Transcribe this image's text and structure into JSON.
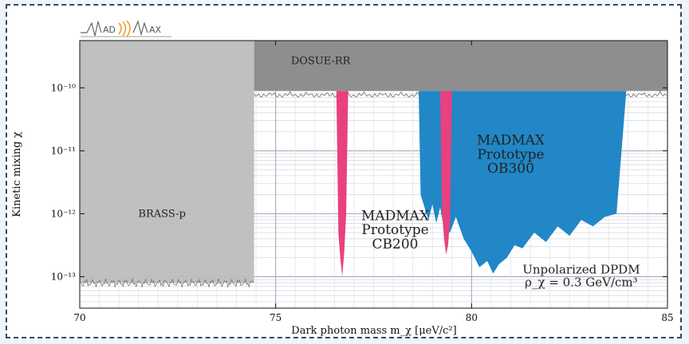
{
  "chart_data": {
    "type": "area",
    "xlabel": "Dark photon mass m_χ [μeV/c²]",
    "ylabel": "Kinetic mixing χ",
    "xlim": [
      70,
      85
    ],
    "ylim_log10": [
      -13.5,
      -9.25
    ],
    "log_y": true,
    "grid": true,
    "x_ticks": [
      "70",
      "75",
      "80",
      "85"
    ],
    "y_ticks": [
      {
        "exp": -10,
        "text": "10⁻¹⁰"
      },
      {
        "exp": -11,
        "text": "10⁻¹¹"
      },
      {
        "exp": -12,
        "text": "10⁻¹²"
      },
      {
        "exp": -13,
        "text": "10⁻¹³"
      }
    ],
    "series": [
      {
        "label": "BRASS-p",
        "color": "#bdbdbd",
        "x_range": [
          70,
          74.45
        ],
        "log10_chi_bottom": -13.1
      },
      {
        "label": "DOSUE-RR",
        "color": "#8e8e8e",
        "x_range": [
          74.45,
          85
        ],
        "log10_chi_bottom": -10.05
      },
      {
        "label_lines": [
          "MADMAX",
          "Prototype",
          "CB200"
        ],
        "color": "#e8417e",
        "x": [
          76.55,
          76.6,
          76.65,
          76.7,
          76.75,
          76.8,
          76.85
        ],
        "log10_chi": [
          -10.05,
          -12.3,
          -12.7,
          -13.0,
          -12.6,
          -12.0,
          -10.05
        ]
      },
      {
        "label_lines": [
          "MADMAX",
          "Prototype",
          "OB300"
        ],
        "color": "#2187c6",
        "x": [
          78.65,
          78.7,
          78.8,
          78.9,
          79.0,
          79.1,
          79.2,
          79.3,
          79.45,
          79.6,
          79.8,
          80.0,
          80.2,
          80.4,
          80.55,
          80.7,
          80.9,
          81.1,
          81.3,
          81.6,
          81.9,
          82.2,
          82.5,
          82.8,
          83.1,
          83.4,
          83.7,
          83.95
        ],
        "log10_chi": [
          -10.05,
          -11.7,
          -11.9,
          -12.1,
          -11.85,
          -12.15,
          -11.9,
          -12.25,
          -12.3,
          -12.05,
          -12.4,
          -12.6,
          -12.85,
          -12.75,
          -12.95,
          -12.8,
          -12.7,
          -12.5,
          -12.55,
          -12.3,
          -12.45,
          -12.2,
          -12.35,
          -12.1,
          -12.2,
          -12.05,
          -12.0,
          -10.05
        ]
      },
      {
        "color": "#e8417e",
        "x": [
          79.2,
          79.25,
          79.3,
          79.35,
          79.4,
          79.45,
          79.5
        ],
        "log10_chi": [
          -10.05,
          -12.0,
          -12.4,
          -12.65,
          -12.5,
          -12.1,
          -10.05
        ]
      }
    ],
    "annotations": [
      {
        "lines": [
          "Unpolarized DPDM",
          "ρ_χ = 0.3 GeV/cm³"
        ]
      }
    ]
  },
  "logo": {
    "text_1": "AD",
    "text_2": "AX"
  }
}
